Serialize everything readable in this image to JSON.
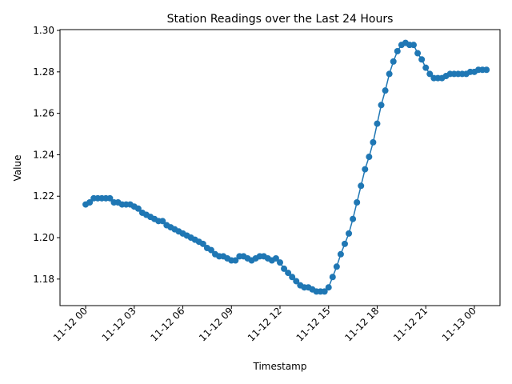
{
  "chart_data": {
    "type": "line",
    "title": "Station Readings over the Last 24 Hours",
    "xlabel": "Timestamp",
    "ylabel": "Value",
    "x_range": [
      "2023-11-11 22:25",
      "2023-11-13 01:35"
    ],
    "ylim": [
      1.1672,
      1.3004
    ],
    "yticks": [
      1.18,
      1.2,
      1.22,
      1.24,
      1.26,
      1.28,
      1.3
    ],
    "ytick_labels": [
      "1.18",
      "1.20",
      "1.22",
      "1.24",
      "1.26",
      "1.28",
      "1.30"
    ],
    "xticks": [
      "2023-11-12 00:00",
      "2023-11-12 03:00",
      "2023-11-12 06:00",
      "2023-11-12 09:00",
      "2023-11-12 12:00",
      "2023-11-12 15:00",
      "2023-11-12 18:00",
      "2023-11-12 21:00",
      "2023-11-13 00:00"
    ],
    "xtick_labels": [
      "11-12 00",
      "11-12 03",
      "11-12 06",
      "11-12 09",
      "11-12 12",
      "11-12 15",
      "11-12 18",
      "11-12 21",
      "11-13 00"
    ],
    "grid": false,
    "legend": "none",
    "series": [
      {
        "color": "#1f77b4",
        "marker": "circle",
        "x": [
          "2023-11-12 00:00",
          "2023-11-12 00:15",
          "2023-11-12 00:30",
          "2023-11-12 00:45",
          "2023-11-12 01:00",
          "2023-11-12 01:15",
          "2023-11-12 01:30",
          "2023-11-12 01:45",
          "2023-11-12 02:00",
          "2023-11-12 02:15",
          "2023-11-12 02:30",
          "2023-11-12 02:45",
          "2023-11-12 03:00",
          "2023-11-12 03:15",
          "2023-11-12 03:30",
          "2023-11-12 03:45",
          "2023-11-12 04:00",
          "2023-11-12 04:15",
          "2023-11-12 04:30",
          "2023-11-12 04:45",
          "2023-11-12 05:00",
          "2023-11-12 05:15",
          "2023-11-12 05:30",
          "2023-11-12 05:45",
          "2023-11-12 06:00",
          "2023-11-12 06:15",
          "2023-11-12 06:30",
          "2023-11-12 06:45",
          "2023-11-12 07:00",
          "2023-11-12 07:15",
          "2023-11-12 07:30",
          "2023-11-12 07:45",
          "2023-11-12 08:00",
          "2023-11-12 08:15",
          "2023-11-12 08:30",
          "2023-11-12 08:45",
          "2023-11-12 09:00",
          "2023-11-12 09:15",
          "2023-11-12 09:30",
          "2023-11-12 09:45",
          "2023-11-12 10:00",
          "2023-11-12 10:15",
          "2023-11-12 10:30",
          "2023-11-12 10:45",
          "2023-11-12 11:00",
          "2023-11-12 11:15",
          "2023-11-12 11:30",
          "2023-11-12 11:45",
          "2023-11-12 12:00",
          "2023-11-12 12:15",
          "2023-11-12 12:30",
          "2023-11-12 12:45",
          "2023-11-12 13:00",
          "2023-11-12 13:15",
          "2023-11-12 13:30",
          "2023-11-12 13:45",
          "2023-11-12 14:00",
          "2023-11-12 14:15",
          "2023-11-12 14:30",
          "2023-11-12 14:45",
          "2023-11-12 15:00",
          "2023-11-12 15:15",
          "2023-11-12 15:30",
          "2023-11-12 15:45",
          "2023-11-12 16:00",
          "2023-11-12 16:15",
          "2023-11-12 16:30",
          "2023-11-12 16:45",
          "2023-11-12 17:00",
          "2023-11-12 17:15",
          "2023-11-12 17:30",
          "2023-11-12 17:45",
          "2023-11-12 18:00",
          "2023-11-12 18:15",
          "2023-11-12 18:30",
          "2023-11-12 18:45",
          "2023-11-12 19:00",
          "2023-11-12 19:15",
          "2023-11-12 19:30",
          "2023-11-12 19:45",
          "2023-11-12 20:00",
          "2023-11-12 20:15",
          "2023-11-12 20:30",
          "2023-11-12 20:45",
          "2023-11-12 21:00",
          "2023-11-12 21:15",
          "2023-11-12 21:30",
          "2023-11-12 21:45",
          "2023-11-12 22:00",
          "2023-11-12 22:15",
          "2023-11-12 22:30",
          "2023-11-12 22:45",
          "2023-11-12 23:00",
          "2023-11-12 23:15",
          "2023-11-12 23:30",
          "2023-11-12 23:45",
          "2023-11-13 00:00",
          "2023-11-13 00:15",
          "2023-11-13 00:30",
          "2023-11-13 00:45"
        ],
        "values": [
          1.216,
          1.217,
          1.219,
          1.219,
          1.219,
          1.219,
          1.219,
          1.217,
          1.217,
          1.216,
          1.216,
          1.216,
          1.215,
          1.214,
          1.212,
          1.211,
          1.21,
          1.209,
          1.208,
          1.208,
          1.206,
          1.205,
          1.204,
          1.203,
          1.202,
          1.201,
          1.2,
          1.199,
          1.198,
          1.197,
          1.195,
          1.194,
          1.192,
          1.191,
          1.191,
          1.19,
          1.189,
          1.189,
          1.191,
          1.191,
          1.19,
          1.189,
          1.19,
          1.191,
          1.191,
          1.19,
          1.189,
          1.19,
          1.188,
          1.185,
          1.183,
          1.181,
          1.179,
          1.177,
          1.176,
          1.176,
          1.175,
          1.174,
          1.174,
          1.174,
          1.176,
          1.181,
          1.186,
          1.192,
          1.197,
          1.202,
          1.209,
          1.217,
          1.225,
          1.233,
          1.239,
          1.246,
          1.255,
          1.264,
          1.271,
          1.279,
          1.285,
          1.29,
          1.293,
          1.294,
          1.293,
          1.293,
          1.289,
          1.286,
          1.282,
          1.279,
          1.277,
          1.277,
          1.277,
          1.278,
          1.279,
          1.279,
          1.279,
          1.279,
          1.279,
          1.28,
          1.28,
          1.281,
          1.281,
          1.281
        ]
      }
    ]
  }
}
